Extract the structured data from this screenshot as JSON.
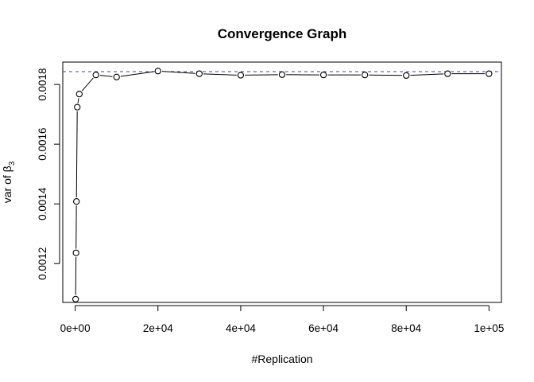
{
  "chart_data": {
    "type": "line",
    "title": "Convergence Graph",
    "xlabel": "#Replication",
    "ylabel": {
      "prefix": "var of ",
      "symbol": "β",
      "subscript": "3"
    },
    "xlim": [
      -3000,
      103000
    ],
    "ylim": [
      0.00107,
      0.001875
    ],
    "x_ticks": [
      {
        "value": 0,
        "label": "0e+00"
      },
      {
        "value": 20000,
        "label": "2e+04"
      },
      {
        "value": 40000,
        "label": "4e+04"
      },
      {
        "value": 60000,
        "label": "6e+04"
      },
      {
        "value": 80000,
        "label": "8e+04"
      },
      {
        "value": 100000,
        "label": "1e+05"
      }
    ],
    "y_ticks": [
      {
        "value": 0.0012,
        "label": "0.0012"
      },
      {
        "value": 0.0014,
        "label": "0.0014"
      },
      {
        "value": 0.0016,
        "label": "0.0016"
      },
      {
        "value": 0.0018,
        "label": "0.0018"
      }
    ],
    "reference_line": {
      "y": 0.001843,
      "color": "#3b3bd1",
      "style": "dashed"
    },
    "series": [
      {
        "marker": "open-circle",
        "color": "#000000",
        "points": [
          {
            "x": 100,
            "y": 0.001081
          },
          {
            "x": 200,
            "y": 0.001236
          },
          {
            "x": 300,
            "y": 0.001408
          },
          {
            "x": 500,
            "y": 0.001724
          },
          {
            "x": 1000,
            "y": 0.001768
          },
          {
            "x": 5000,
            "y": 0.001832
          },
          {
            "x": 10000,
            "y": 0.001825
          },
          {
            "x": 20000,
            "y": 0.001845
          },
          {
            "x": 30000,
            "y": 0.001836
          },
          {
            "x": 40000,
            "y": 0.001831
          },
          {
            "x": 50000,
            "y": 0.001833
          },
          {
            "x": 60000,
            "y": 0.001832
          },
          {
            "x": 70000,
            "y": 0.001832
          },
          {
            "x": 80000,
            "y": 0.00183
          },
          {
            "x": 90000,
            "y": 0.001836
          },
          {
            "x": 100000,
            "y": 0.001836
          }
        ]
      }
    ],
    "grid": false,
    "legend": "none"
  }
}
